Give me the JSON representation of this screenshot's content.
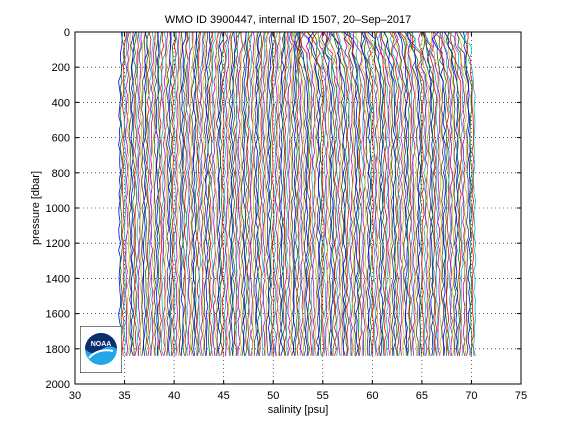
{
  "chart_data": {
    "type": "line",
    "title": "WMO ID 3900447, internal ID 1507, 20–Sep–2017",
    "xlabel": "salinity [psu]",
    "ylabel": "pressure [dbar]",
    "xlim": [
      30,
      75
    ],
    "ylim": [
      0,
      2000
    ],
    "y_reversed": true,
    "x_ticks": [
      30,
      35,
      40,
      45,
      50,
      55,
      60,
      65,
      70,
      75
    ],
    "y_ticks": [
      0,
      200,
      400,
      600,
      800,
      1000,
      1200,
      1400,
      1600,
      1800,
      2000
    ],
    "x_tick_labels": [
      "30",
      "35",
      "40",
      "45",
      "50",
      "55",
      "60",
      "65",
      "70",
      "75"
    ],
    "y_tick_labels": [
      "0",
      "200",
      "400",
      "600",
      "800",
      "1000",
      "1200",
      "1400",
      "1600",
      "1800",
      "2000"
    ],
    "grid": "dotted",
    "description": "Waterfall of salinity profiles; each successive profile is offset by ~0.18 psu from 34.5 to 70.2 psu, pressure 0–1840 dbar",
    "series_count": 200,
    "offset_start": 34.5,
    "offset_step": 0.18,
    "max_pressure": 1840,
    "series_colors": [
      "#0000ff",
      "#008000",
      "#ff0000",
      "#00bfbf",
      "#bf00bf",
      "#bfbf00",
      "#404040"
    ]
  },
  "logo": {
    "text": "NOAA",
    "colors": {
      "navy": "#0a2e6e",
      "sky": "#22a6e6",
      "white": "#ffffff"
    }
  }
}
